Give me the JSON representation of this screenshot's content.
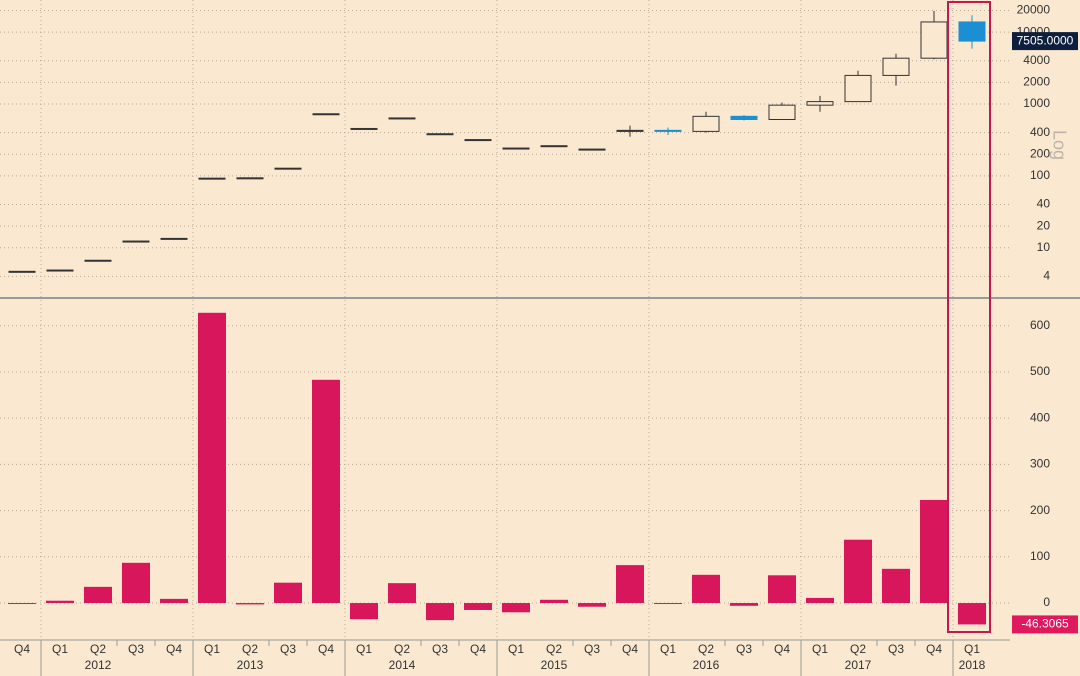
{
  "chart_data": [
    {
      "type": "candlestick",
      "log_scale": true,
      "scale_label": "Log",
      "grid": true,
      "up_color": "#fbe8d0",
      "down_color": "#1b8fd2",
      "outline_color": "#333333",
      "open": [
        4.7,
        4.9,
        6.7,
        12.4,
        13.5,
        93,
        94,
        128,
        732,
        457,
        640,
        386,
        320,
        244,
        263,
        236,
        416,
        430,
        416,
        674,
        609,
        964,
        1080,
        2500,
        4340,
        13860
      ],
      "high": [
        4.7,
        4.9,
        6.7,
        12.4,
        13.5,
        93,
        94,
        128,
        732,
        457,
        640,
        386,
        320,
        244,
        263,
        236,
        500,
        470,
        780,
        700,
        1050,
        1300,
        2900,
        5000,
        19800,
        17200
      ],
      "low": [
        4.7,
        4.9,
        6.7,
        12.4,
        13.5,
        93,
        94,
        128,
        732,
        457,
        640,
        386,
        320,
        244,
        263,
        236,
        350,
        370,
        400,
        590,
        600,
        780,
        1070,
        1800,
        4200,
        5900
      ],
      "close": [
        4.7,
        4.9,
        6.7,
        12.4,
        13.5,
        93,
        94,
        128,
        732,
        457,
        640,
        386,
        320,
        244,
        263,
        236,
        430,
        416,
        674,
        609,
        964,
        1080,
        2500,
        4340,
        13860,
        7505
      ],
      "close_labels": [
        null,
        null,
        null,
        null,
        null,
        null,
        null,
        null,
        null,
        null,
        null,
        null,
        null,
        null,
        null,
        null,
        null,
        null,
        null,
        null,
        null,
        null,
        null,
        null,
        null,
        "7505.0000"
      ],
      "ylim": [
        2,
        28000
      ],
      "yticks": [
        4,
        10,
        20,
        40,
        100,
        200,
        400,
        1000,
        2000,
        4000,
        10000,
        20000
      ]
    },
    {
      "type": "bar",
      "color": "#d8165c",
      "grid": true,
      "categories": [
        "Q4",
        "Q1",
        "Q2",
        "Q3",
        "Q4",
        "Q1",
        "Q2",
        "Q3",
        "Q4",
        "Q1",
        "Q2",
        "Q3",
        "Q4",
        "Q1",
        "Q2",
        "Q3",
        "Q4",
        "Q1",
        "Q2",
        "Q3",
        "Q4",
        "Q1",
        "Q2",
        "Q3",
        "Q4",
        "Q1"
      ],
      "year_labels": [
        null,
        null,
        "2012",
        null,
        null,
        null,
        "2013",
        null,
        null,
        null,
        "2014",
        null,
        null,
        null,
        "2015",
        null,
        null,
        null,
        "2016",
        null,
        null,
        null,
        "2017",
        null,
        null,
        "2018"
      ],
      "values": [
        -1,
        5,
        35,
        87,
        9,
        628,
        -3,
        44,
        483,
        -35,
        43,
        -37,
        -15,
        -20,
        7,
        -8,
        82,
        -2,
        61,
        -6,
        60,
        11,
        137,
        74,
        223,
        -46.3065
      ],
      "value_labels": [
        null,
        null,
        null,
        null,
        null,
        null,
        null,
        null,
        null,
        null,
        null,
        null,
        null,
        null,
        null,
        null,
        null,
        null,
        null,
        null,
        null,
        null,
        null,
        null,
        null,
        "-46.3065"
      ],
      "ylim": [
        -80,
        660
      ],
      "yticks": [
        0,
        100,
        200,
        300,
        400,
        500,
        600
      ]
    }
  ]
}
